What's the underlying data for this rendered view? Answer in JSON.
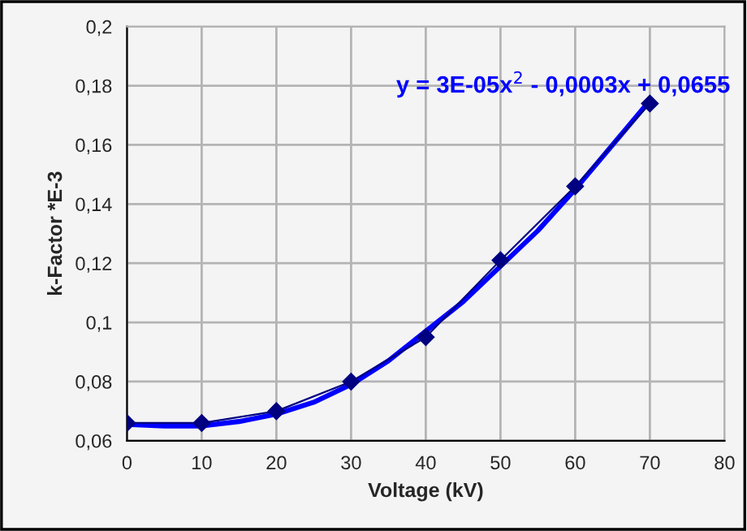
{
  "chart_data": {
    "type": "line",
    "xlabel": "Voltage (kV)",
    "ylabel": "k-Factor *E-3",
    "x": [
      0,
      10,
      20,
      30,
      40,
      50,
      60,
      70
    ],
    "series": [
      {
        "color": "#000080",
        "marker": "diamond",
        "values": [
          0.066,
          0.066,
          0.07,
          0.08,
          0.095,
          0.121,
          0.146,
          0.174
        ]
      },
      {
        "color": "#0000ff",
        "marker": "none",
        "x": [
          0,
          5,
          10,
          15,
          20,
          25,
          30,
          35,
          40,
          45,
          50,
          55,
          60,
          65,
          70
        ],
        "values": [
          0.0655,
          0.065,
          0.065,
          0.0665,
          0.069,
          0.073,
          0.079,
          0.087,
          0.097,
          0.107,
          0.119,
          0.131,
          0.145,
          0.16,
          0.175
        ]
      }
    ],
    "annotations": [
      "y = 3E-05x$^{2}$ - 0,0003x + 0,0655"
    ],
    "xlim": [
      0,
      80
    ],
    "xticks": [
      0,
      10,
      20,
      30,
      40,
      50,
      60,
      70,
      80
    ],
    "ylim": [
      0.06,
      0.2
    ],
    "yticks": [
      {
        "value": 0.06,
        "label": "0,06"
      },
      {
        "value": 0.08,
        "label": "0,08"
      },
      {
        "value": 0.1,
        "label": "0,1"
      },
      {
        "value": 0.12,
        "label": "0,12"
      },
      {
        "value": 0.14,
        "label": "0,14"
      },
      {
        "value": 0.16,
        "label": "0,16"
      },
      {
        "value": 0.18,
        "label": "0,18"
      },
      {
        "value": 0.2,
        "label": "0,2"
      }
    ],
    "grid": true,
    "line_style": "solid"
  }
}
